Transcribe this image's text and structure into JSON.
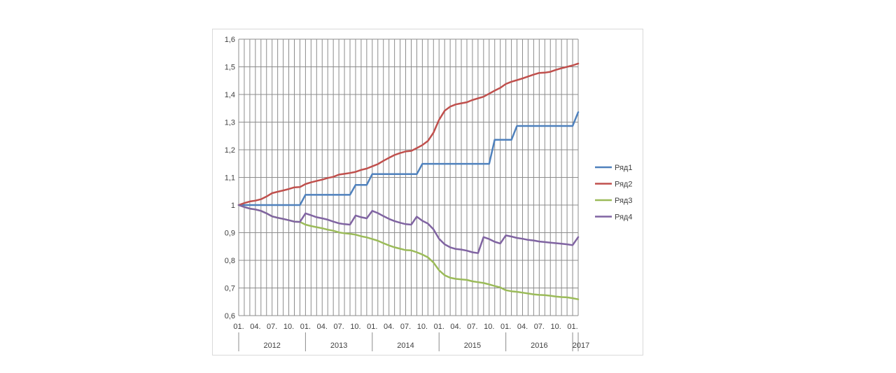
{
  "chart_data": {
    "type": "line",
    "title": "",
    "xlabel": "",
    "ylabel": "",
    "ylim": [
      0.6,
      1.6
    ],
    "y_ticks": [
      "0,6",
      "0,7",
      "0,8",
      "0,9",
      "1",
      "1,1",
      "1,2",
      "1,3",
      "1,4",
      "1,5",
      "1,6"
    ],
    "grid": true,
    "legend_position": "right",
    "month_tick_labels": [
      "01.",
      "04.",
      "07.",
      "10.",
      "01.",
      "04.",
      "07.",
      "10.",
      "01.",
      "04.",
      "07.",
      "10.",
      "01.",
      "04.",
      "07.",
      "10.",
      "01.",
      "04.",
      "07.",
      "10.",
      "01."
    ],
    "year_labels": [
      "2012",
      "2013",
      "2014",
      "2015",
      "2016",
      "2017"
    ],
    "x": [
      "2012-01",
      "2012-02",
      "2012-03",
      "2012-04",
      "2012-05",
      "2012-06",
      "2012-07",
      "2012-08",
      "2012-09",
      "2012-10",
      "2012-11",
      "2012-12",
      "2013-01",
      "2013-02",
      "2013-03",
      "2013-04",
      "2013-05",
      "2013-06",
      "2013-07",
      "2013-08",
      "2013-09",
      "2013-10",
      "2013-11",
      "2013-12",
      "2014-01",
      "2014-02",
      "2014-03",
      "2014-04",
      "2014-05",
      "2014-06",
      "2014-07",
      "2014-08",
      "2014-09",
      "2014-10",
      "2014-11",
      "2014-12",
      "2015-01",
      "2015-02",
      "2015-03",
      "2015-04",
      "2015-05",
      "2015-06",
      "2015-07",
      "2015-08",
      "2015-09",
      "2015-10",
      "2015-11",
      "2015-12",
      "2016-01",
      "2016-02",
      "2016-03",
      "2016-04",
      "2016-05",
      "2016-06",
      "2016-07",
      "2016-08",
      "2016-09",
      "2016-10",
      "2016-11",
      "2016-12",
      "2017-01",
      "2017-02"
    ],
    "series": [
      {
        "name": "Ряд1",
        "color": "#4f81bd",
        "values": [
          1,
          1,
          1,
          1,
          1,
          1,
          1,
          1,
          1,
          1,
          1,
          1,
          1.037,
          1.037,
          1.037,
          1.037,
          1.037,
          1.037,
          1.037,
          1.037,
          1.037,
          1.073,
          1.073,
          1.073,
          1.112,
          1.112,
          1.112,
          1.112,
          1.112,
          1.112,
          1.112,
          1.112,
          1.112,
          1.149,
          1.149,
          1.149,
          1.149,
          1.149,
          1.149,
          1.149,
          1.149,
          1.149,
          1.149,
          1.149,
          1.149,
          1.149,
          1.236,
          1.236,
          1.236,
          1.236,
          1.286,
          1.286,
          1.286,
          1.286,
          1.286,
          1.286,
          1.286,
          1.286,
          1.286,
          1.286,
          1.286,
          1.336
        ]
      },
      {
        "name": "Ряд2",
        "color": "#c0504d",
        "values": [
          1,
          1.007,
          1.013,
          1.016,
          1.021,
          1.031,
          1.043,
          1.048,
          1.053,
          1.058,
          1.064,
          1.065,
          1.076,
          1.082,
          1.087,
          1.092,
          1.098,
          1.102,
          1.11,
          1.113,
          1.116,
          1.12,
          1.127,
          1.132,
          1.14,
          1.148,
          1.16,
          1.171,
          1.181,
          1.188,
          1.194,
          1.196,
          1.206,
          1.217,
          1.232,
          1.262,
          1.308,
          1.341,
          1.356,
          1.364,
          1.368,
          1.372,
          1.38,
          1.386,
          1.392,
          1.403,
          1.414,
          1.424,
          1.438,
          1.446,
          1.452,
          1.458,
          1.465,
          1.472,
          1.478,
          1.479,
          1.482,
          1.489,
          1.495,
          1.5,
          1.505,
          1.512
        ]
      },
      {
        "name": "Ряд3",
        "color": "#9bbb59",
        "values": [
          1,
          0.993,
          0.987,
          0.984,
          0.979,
          0.97,
          0.959,
          0.954,
          0.95,
          0.945,
          0.94,
          0.939,
          0.929,
          0.924,
          0.92,
          0.916,
          0.911,
          0.907,
          0.901,
          0.898,
          0.896,
          0.893,
          0.887,
          0.883,
          0.877,
          0.871,
          0.862,
          0.854,
          0.847,
          0.842,
          0.837,
          0.836,
          0.829,
          0.821,
          0.811,
          0.792,
          0.764,
          0.746,
          0.737,
          0.733,
          0.731,
          0.729,
          0.724,
          0.721,
          0.718,
          0.713,
          0.707,
          0.702,
          0.692,
          0.688,
          0.686,
          0.683,
          0.68,
          0.677,
          0.675,
          0.674,
          0.672,
          0.669,
          0.667,
          0.666,
          0.663,
          0.659
        ]
      },
      {
        "name": "Ряд4",
        "color": "#8064a2",
        "values": [
          1,
          0.993,
          0.987,
          0.984,
          0.979,
          0.97,
          0.959,
          0.954,
          0.95,
          0.945,
          0.94,
          0.939,
          0.97,
          0.963,
          0.956,
          0.952,
          0.947,
          0.94,
          0.934,
          0.931,
          0.929,
          0.962,
          0.956,
          0.952,
          0.979,
          0.971,
          0.96,
          0.95,
          0.942,
          0.936,
          0.931,
          0.929,
          0.958,
          0.943,
          0.933,
          0.912,
          0.878,
          0.858,
          0.847,
          0.841,
          0.839,
          0.835,
          0.829,
          0.826,
          0.884,
          0.877,
          0.867,
          0.861,
          0.89,
          0.886,
          0.881,
          0.878,
          0.874,
          0.872,
          0.868,
          0.866,
          0.864,
          0.862,
          0.86,
          0.858,
          0.855,
          0.884
        ]
      }
    ]
  }
}
